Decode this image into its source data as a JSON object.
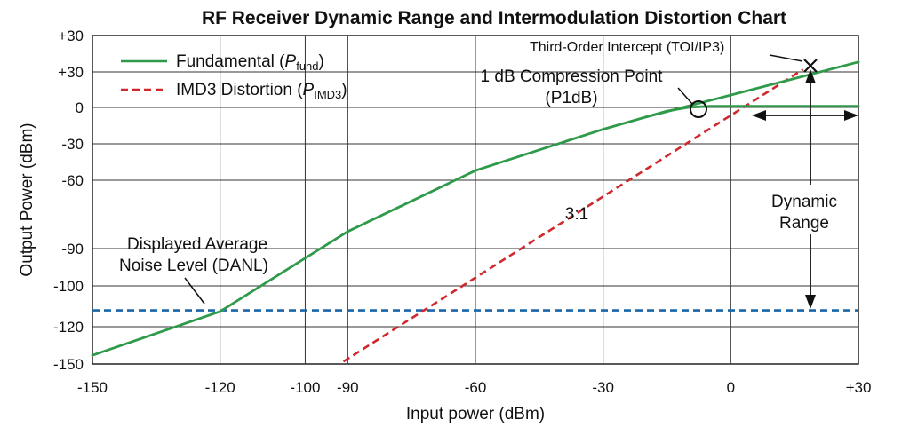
{
  "chart_data": {
    "type": "line",
    "title": "RF Receiver Dynamic Range and Intermodulation Distortion Chart",
    "xlabel": "Input power (dBm)",
    "ylabel": "Output Power (dBm)",
    "xlim": [
      -150,
      30
    ],
    "ylim": [
      -150,
      30
    ],
    "x_ticks": [
      -150,
      -120,
      -100,
      -90,
      -60,
      -30,
      0,
      30
    ],
    "x_tick_labels": [
      "-150",
      "-120",
      "-100",
      "-90",
      "-60",
      "-30",
      "0",
      "+30"
    ],
    "y_tick_labels": [
      "+30",
      "+30",
      "0",
      "-30",
      "-60",
      "-90",
      "-100",
      "-120",
      "-150"
    ],
    "grid": true,
    "legend_position": "top-left",
    "series": [
      {
        "name": "Fundamental",
        "legend_main": "Fundamental (",
        "legend_italic": "P",
        "legend_sub": "fund",
        "legend_close": ")",
        "style": "solid",
        "color": "#2e9a4a",
        "x": [
          -150,
          -120,
          -90,
          -60,
          -30,
          -20,
          -15,
          -10,
          -5,
          0,
          15,
          30
        ],
        "y": [
          -143,
          -112.5,
          -82.5,
          -52,
          -18,
          -8,
          -3,
          0,
          1,
          1,
          1,
          1
        ]
      },
      {
        "name": "Extrapolated fundamental",
        "style": "solid",
        "color": "#2e9a4a",
        "x": [
          -20,
          30
        ],
        "y": [
          -8,
          38
        ]
      },
      {
        "name": "IMD3 Distortion",
        "legend_main": "IMD3 Distortion (",
        "legend_italic": "P",
        "legend_sub": "IMD3",
        "legend_close": ")",
        "style": "dashed",
        "color": "#d0282c",
        "x": [
          -91,
          17
        ],
        "y": [
          -148,
          32
        ]
      },
      {
        "name": "DANL",
        "style": "dashed",
        "color": "#1a66a8",
        "x": [
          -150,
          30
        ],
        "y": [
          -112,
          -112
        ]
      }
    ],
    "annotations": {
      "toi_label": "Third-Order Intercept (TOI/IP3)",
      "toi_point": {
        "x": 17,
        "y": 32
      },
      "p1db_label_1": "1 dB Compression Point",
      "p1db_label_2": "(P1dB)",
      "p1db_point": {
        "x": -15,
        "y": -3
      },
      "slope_label": "3:1",
      "slope_label_at": {
        "x": -58,
        "y": -86
      },
      "danl_label_1": "Displayed Average",
      "danl_label_2": "Noise Level (DANL)",
      "dynamic_range_label_1": "Dynamic",
      "dynamic_range_label_2": "Range"
    }
  }
}
